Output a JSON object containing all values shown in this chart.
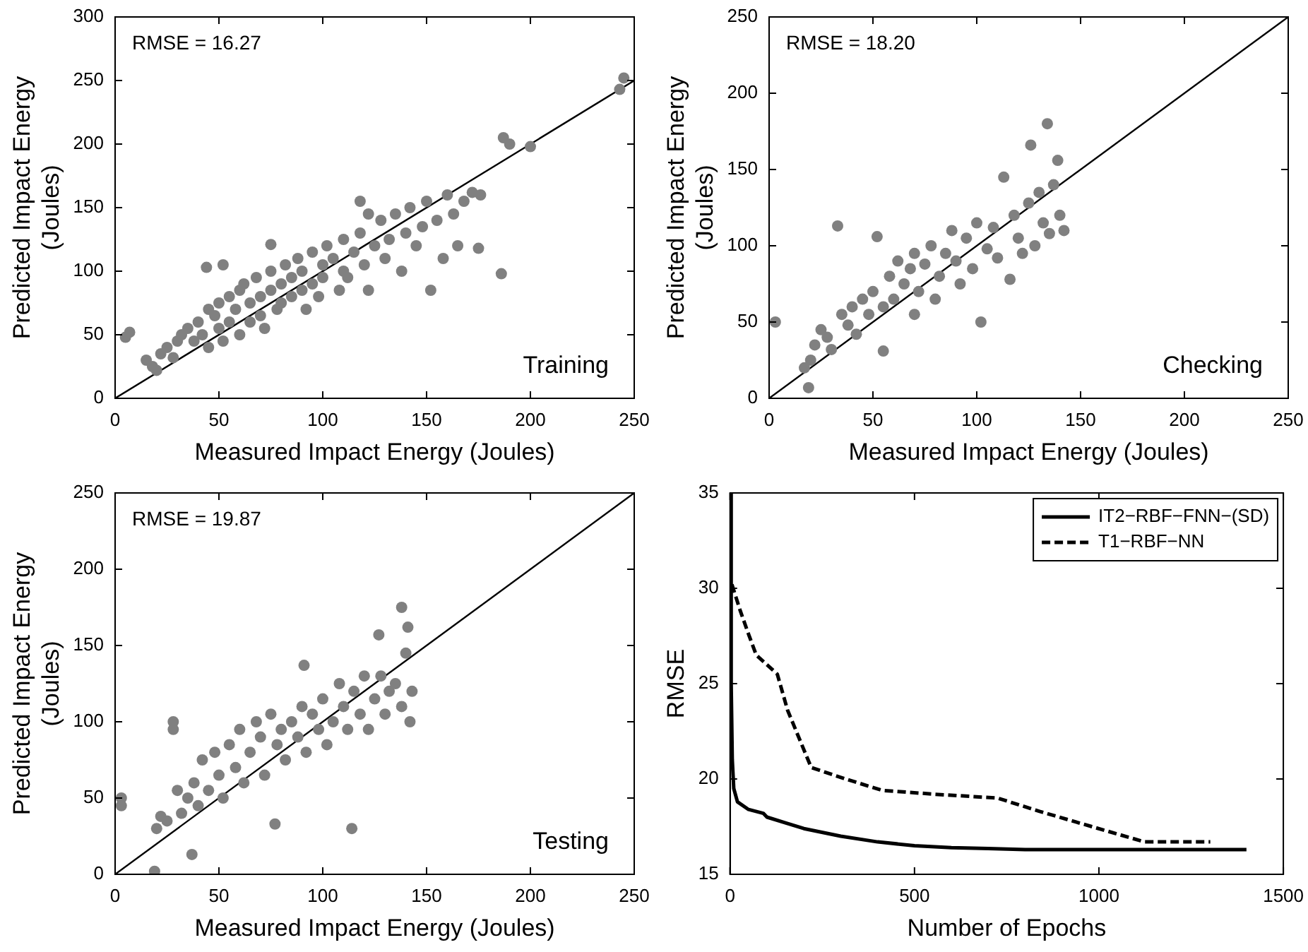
{
  "chart_data": [
    {
      "type": "scatter",
      "xlabel": "Measured Impact Energy (Joules)",
      "ylabel": "Predicted Impact Energy\n(Joules)",
      "xlim": [
        0,
        250
      ],
      "xticks": [
        0,
        50,
        100,
        150,
        200,
        250
      ],
      "ylim": [
        0,
        300
      ],
      "yticks": [
        0,
        50,
        100,
        150,
        200,
        250,
        300
      ],
      "grid": false,
      "legend": false,
      "annotations": [
        "RMSE = 16.27",
        "Training"
      ],
      "series": [
        {
          "type": "scatter",
          "marker": "circle",
          "color": "#808080",
          "x": [
            5,
            7,
            15,
            18,
            20,
            22,
            25,
            28,
            30,
            32,
            35,
            38,
            40,
            42,
            44,
            45,
            45,
            48,
            50,
            50,
            52,
            52,
            55,
            55,
            58,
            60,
            60,
            62,
            65,
            65,
            68,
            70,
            70,
            72,
            75,
            75,
            75,
            78,
            80,
            80,
            82,
            85,
            85,
            88,
            90,
            90,
            92,
            95,
            95,
            98,
            100,
            100,
            102,
            105,
            108,
            110,
            110,
            112,
            115,
            118,
            118,
            120,
            122,
            122,
            125,
            128,
            130,
            132,
            135,
            138,
            140,
            142,
            145,
            148,
            150,
            152,
            155,
            158,
            160,
            163,
            165,
            168,
            172,
            175,
            176,
            186,
            187,
            190,
            200,
            243,
            245
          ],
          "values": [
            48,
            52,
            30,
            25,
            22,
            35,
            40,
            32,
            45,
            50,
            55,
            45,
            60,
            50,
            103,
            70,
            40,
            65,
            55,
            75,
            45,
            105,
            80,
            60,
            70,
            50,
            85,
            90,
            75,
            60,
            95,
            80,
            65,
            55,
            100,
            85,
            121,
            70,
            90,
            75,
            105,
            80,
            95,
            110,
            100,
            85,
            70,
            115,
            90,
            80,
            105,
            95,
            120,
            110,
            85,
            125,
            100,
            95,
            115,
            130,
            155,
            105,
            85,
            145,
            120,
            140,
            110,
            125,
            145,
            100,
            130,
            150,
            120,
            135,
            155,
            85,
            140,
            110,
            160,
            145,
            120,
            155,
            162,
            118,
            160,
            98,
            205,
            200,
            198,
            243,
            252
          ]
        },
        {
          "type": "line",
          "color": "#000000",
          "x": [
            0,
            250
          ],
          "values": [
            0,
            250
          ]
        }
      ]
    },
    {
      "type": "scatter",
      "xlabel": "Measured Impact Energy (Joules)",
      "ylabel": "Predicted Impact Energy\n(Joules)",
      "xlim": [
        0,
        250
      ],
      "xticks": [
        0,
        50,
        100,
        150,
        200,
        250
      ],
      "ylim": [
        0,
        250
      ],
      "yticks": [
        0,
        50,
        100,
        150,
        200,
        250
      ],
      "grid": false,
      "legend": false,
      "annotations": [
        "RMSE = 18.20",
        "Checking"
      ],
      "series": [
        {
          "type": "scatter",
          "marker": "circle",
          "color": "#808080",
          "x": [
            3,
            17,
            19,
            20,
            22,
            25,
            28,
            30,
            33,
            35,
            38,
            40,
            42,
            45,
            48,
            50,
            52,
            55,
            55,
            58,
            60,
            62,
            65,
            68,
            70,
            70,
            72,
            75,
            78,
            80,
            82,
            85,
            88,
            90,
            92,
            95,
            98,
            100,
            102,
            105,
            108,
            110,
            113,
            116,
            118,
            120,
            122,
            125,
            126,
            128,
            130,
            132,
            134,
            135,
            137,
            139,
            140,
            142
          ],
          "values": [
            50,
            20,
            7,
            25,
            35,
            45,
            40,
            32,
            113,
            55,
            48,
            60,
            42,
            65,
            55,
            70,
            106,
            31,
            60,
            80,
            65,
            90,
            75,
            85,
            55,
            95,
            70,
            88,
            100,
            65,
            80,
            95,
            110,
            90,
            75,
            105,
            85,
            115,
            50,
            98,
            112,
            92,
            145,
            78,
            120,
            105,
            95,
            128,
            166,
            100,
            135,
            115,
            180,
            108,
            140,
            156,
            120,
            110
          ]
        },
        {
          "type": "line",
          "color": "#000000",
          "x": [
            0,
            250
          ],
          "values": [
            0,
            250
          ]
        }
      ]
    },
    {
      "type": "scatter",
      "xlabel": "Measured Impact Energy (Joules)",
      "ylabel": "Predicted Impact Energy\n(Joules)",
      "xlim": [
        0,
        250
      ],
      "xticks": [
        0,
        50,
        100,
        150,
        200,
        250
      ],
      "ylim": [
        0,
        250
      ],
      "yticks": [
        0,
        50,
        100,
        150,
        200,
        250
      ],
      "grid": false,
      "legend": false,
      "annotations": [
        "RMSE = 19.87",
        "Testing"
      ],
      "series": [
        {
          "type": "scatter",
          "marker": "circle",
          "color": "#808080",
          "x": [
            3,
            3,
            19,
            20,
            22,
            25,
            28,
            28,
            30,
            32,
            35,
            37,
            38,
            40,
            42,
            45,
            48,
            50,
            52,
            55,
            58,
            60,
            62,
            65,
            68,
            70,
            72,
            75,
            77,
            78,
            80,
            82,
            85,
            88,
            90,
            91,
            92,
            95,
            98,
            100,
            102,
            105,
            108,
            110,
            112,
            114,
            115,
            118,
            120,
            122,
            125,
            127,
            128,
            130,
            132,
            135,
            138,
            138,
            140,
            141,
            142,
            143
          ],
          "values": [
            45,
            50,
            2,
            30,
            38,
            35,
            100,
            95,
            55,
            40,
            50,
            13,
            60,
            45,
            75,
            55,
            80,
            65,
            50,
            85,
            70,
            95,
            60,
            80,
            100,
            90,
            65,
            105,
            33,
            85,
            95,
            75,
            100,
            90,
            110,
            137,
            80,
            105,
            95,
            115,
            85,
            100,
            125,
            110,
            95,
            30,
            120,
            105,
            130,
            95,
            115,
            157,
            130,
            105,
            120,
            125,
            175,
            110,
            145,
            162,
            100,
            120
          ]
        },
        {
          "type": "line",
          "color": "#000000",
          "x": [
            0,
            250
          ],
          "values": [
            0,
            250
          ]
        }
      ]
    },
    {
      "type": "line",
      "xlabel": "Number of Epochs",
      "ylabel": "RMSE",
      "xlim": [
        0,
        1500
      ],
      "xticks": [
        0,
        500,
        1000,
        1500
      ],
      "ylim": [
        15,
        35
      ],
      "yticks": [
        15,
        20,
        25,
        30,
        35
      ],
      "grid": false,
      "legend": "top right",
      "marker": "none",
      "series": [
        {
          "name": "IT2−RBF−FNN−(SD)",
          "color": "#000000",
          "line_style": "solid",
          "x": [
            1,
            3,
            6,
            10,
            20,
            50,
            90,
            100,
            150,
            200,
            300,
            400,
            500,
            600,
            700,
            800,
            1000,
            1200,
            1400
          ],
          "values": [
            35,
            25,
            21,
            19.5,
            18.8,
            18.4,
            18.2,
            18,
            17.7,
            17.4,
            17,
            16.7,
            16.5,
            16.4,
            16.35,
            16.3,
            16.3,
            16.3,
            16.3
          ]
        },
        {
          "name": "T1−RBF−NN",
          "color": "#000000",
          "line_style": "dashed",
          "x": [
            5,
            28,
            50,
            71,
            128,
            156,
            220,
            313,
            413,
            555,
            725,
            839,
            981,
            1124,
            1302
          ],
          "values": [
            30.2,
            28.8,
            27.6,
            26.5,
            25.5,
            23.6,
            20.6,
            20,
            19.4,
            19.2,
            19,
            18.3,
            17.5,
            16.7,
            16.7
          ]
        }
      ]
    }
  ]
}
